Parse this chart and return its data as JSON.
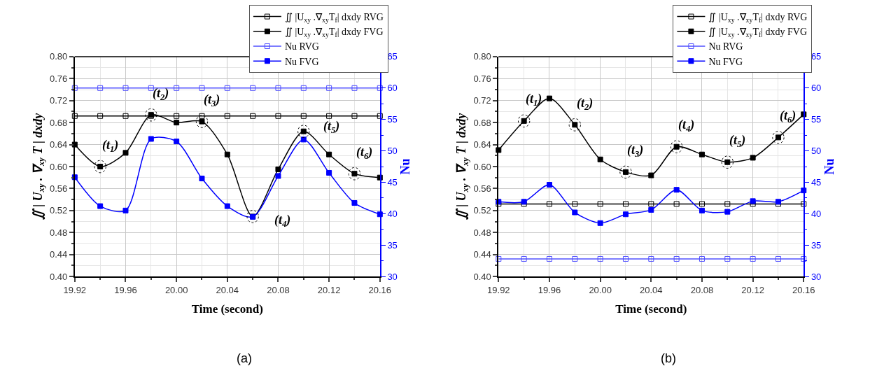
{
  "chart_data": [
    {
      "type": "line",
      "xlabel": "Time (second)",
      "ylabel": "∬ | U$_{xy}$ . ∇$_{xy}$ T | dxdy",
      "y2label": "Nu",
      "x": [
        19.92,
        19.94,
        19.96,
        19.98,
        20.0,
        20.02,
        20.04,
        20.06,
        20.08,
        20.1,
        20.12,
        20.14,
        20.16
      ],
      "series": [
        {
          "name": "∬ |U$_{xy}$ .∇$_{xy}$T$_{f}$| dxdy RVG",
          "color": "#000000",
          "marker": "square-open",
          "values": [
            0.692,
            0.692,
            0.692,
            0.692,
            0.692,
            0.692,
            0.692,
            0.692,
            0.692,
            0.692,
            0.692,
            0.692,
            0.692
          ]
        },
        {
          "name": "∬ |U$_{xy}$ .∇$_{xy}$T$_{f}$| dxdy FVG",
          "color": "#000000",
          "marker": "square",
          "values": [
            0.64,
            0.6,
            0.625,
            0.694,
            0.68,
            0.682,
            0.622,
            0.509,
            0.595,
            0.664,
            0.622,
            0.587,
            0.58
          ]
        },
        {
          "name": "Nu RVG",
          "color": "#5050ff",
          "marker": "square-open",
          "axis": "y2",
          "values": [
            60.0,
            60.0,
            60.0,
            60.0,
            60.0,
            60.0,
            60.0,
            60.0,
            60.0,
            60.0,
            60.0,
            60.0,
            60.0
          ]
        },
        {
          "name": "Nu FVG",
          "color": "#0000ff",
          "marker": "square",
          "axis": "y2",
          "values": [
            45.8,
            41.2,
            40.5,
            51.9,
            51.5,
            45.6,
            41.2,
            39.5,
            46.0,
            51.8,
            46.5,
            41.7,
            39.9
          ]
        }
      ],
      "xlim": [
        19.92,
        20.16
      ],
      "xticks": [
        19.92,
        19.96,
        {
          "value": 20.0,
          "label": "20.00"
        },
        20.04,
        20.08,
        20.12,
        20.16
      ],
      "ylim": [
        0.4,
        0.8
      ],
      "yticks": [
        {
          "value": 0.4,
          "label": "0.40"
        },
        0.44,
        0.48,
        0.52,
        0.56,
        {
          "value": 0.6,
          "label": "0.60"
        },
        0.64,
        0.68,
        0.72,
        0.76,
        {
          "value": 0.8,
          "label": "0.80"
        }
      ],
      "y2lim": [
        30,
        65
      ],
      "y2ticks": [
        30,
        35,
        40,
        45,
        50,
        55,
        60,
        65
      ],
      "grid": true,
      "legend": "top right",
      "line_style": "solid",
      "annotations": [
        "(a)",
        {
          "text": "(t$_{1}$)",
          "x": 19.94,
          "y": 0.6
        },
        {
          "text": "(t$_{2}$)",
          "x": 19.98,
          "y": 0.694
        },
        {
          "text": "(t$_{3}$)",
          "x": 20.02,
          "y": 0.682
        },
        {
          "text": "(t$_{4}$)",
          "x": 20.06,
          "y": 0.509
        },
        {
          "text": "(t$_{5}$)",
          "x": 20.1,
          "y": 0.664
        },
        {
          "text": "(t$_{6}$)",
          "x": 20.14,
          "y": 0.587
        }
      ]
    },
    {
      "type": "line",
      "xlabel": "Time (second)",
      "ylabel": "∬ | U$_{xy}$ . ∇$_{xy}$ T | dxdy",
      "y2label": "Nu",
      "x": [
        19.92,
        19.94,
        19.96,
        19.98,
        20.0,
        20.02,
        20.04,
        20.06,
        20.08,
        20.1,
        20.12,
        20.14,
        20.16
      ],
      "series": [
        {
          "name": "∬ |U$_{xy}$ .∇$_{xy}$T$_{f}$| dxdy RVG",
          "color": "#000000",
          "marker": "square-open",
          "values": [
            0.532,
            0.532,
            0.532,
            0.532,
            0.532,
            0.532,
            0.532,
            0.532,
            0.532,
            0.532,
            0.532,
            0.532,
            0.532
          ]
        },
        {
          "name": "∬ |U$_{xy}$ .∇$_{xy}$T$_{f}$| dxdy FVG",
          "color": "#000000",
          "marker": "square",
          "values": [
            0.63,
            0.683,
            0.724,
            0.676,
            0.613,
            0.59,
            0.584,
            0.636,
            0.622,
            0.608,
            0.616,
            0.653,
            0.695
          ]
        },
        {
          "name": "Nu RVG",
          "color": "#5050ff",
          "marker": "square-open",
          "axis": "y2",
          "values": [
            32.8,
            32.8,
            32.8,
            32.8,
            32.8,
            32.8,
            32.8,
            32.8,
            32.8,
            32.8,
            32.8,
            32.8,
            32.8
          ]
        },
        {
          "name": "Nu FVG",
          "color": "#0000ff",
          "marker": "square",
          "axis": "y2",
          "values": [
            41.9,
            41.9,
            44.6,
            40.2,
            38.5,
            39.9,
            40.6,
            43.8,
            40.5,
            40.3,
            42.0,
            41.9,
            43.7
          ]
        }
      ],
      "xlim": [
        19.92,
        20.16
      ],
      "xticks": [
        19.92,
        19.96,
        {
          "value": 20.0,
          "label": "20.00"
        },
        20.04,
        20.08,
        20.12,
        20.16
      ],
      "ylim": [
        0.4,
        0.8
      ],
      "yticks": [
        {
          "value": 0.4,
          "label": "0.40"
        },
        0.44,
        0.48,
        0.52,
        0.56,
        {
          "value": 0.6,
          "label": "0.60"
        },
        0.64,
        0.68,
        0.72,
        0.76,
        {
          "value": 0.8,
          "label": "0.80"
        }
      ],
      "y2lim": [
        30,
        65
      ],
      "y2ticks": [
        30,
        35,
        40,
        45,
        50,
        55,
        60,
        65
      ],
      "grid": true,
      "legend": "top right",
      "line_style": "solid",
      "annotations": [
        "(b)",
        {
          "text": "(t$_{1}$)",
          "x": 19.94,
          "y": 0.683
        },
        {
          "text": "(t$_{2}$)",
          "x": 19.98,
          "y": 0.676
        },
        {
          "text": "(t$_{3}$)",
          "x": 20.02,
          "y": 0.59
        },
        {
          "text": "(t$_{4}$)",
          "x": 20.06,
          "y": 0.636
        },
        {
          "text": "(t$_{5}$)",
          "x": 20.1,
          "y": 0.608
        },
        {
          "text": "(t$_{6}$)",
          "x": 20.14,
          "y": 0.653
        }
      ]
    }
  ]
}
